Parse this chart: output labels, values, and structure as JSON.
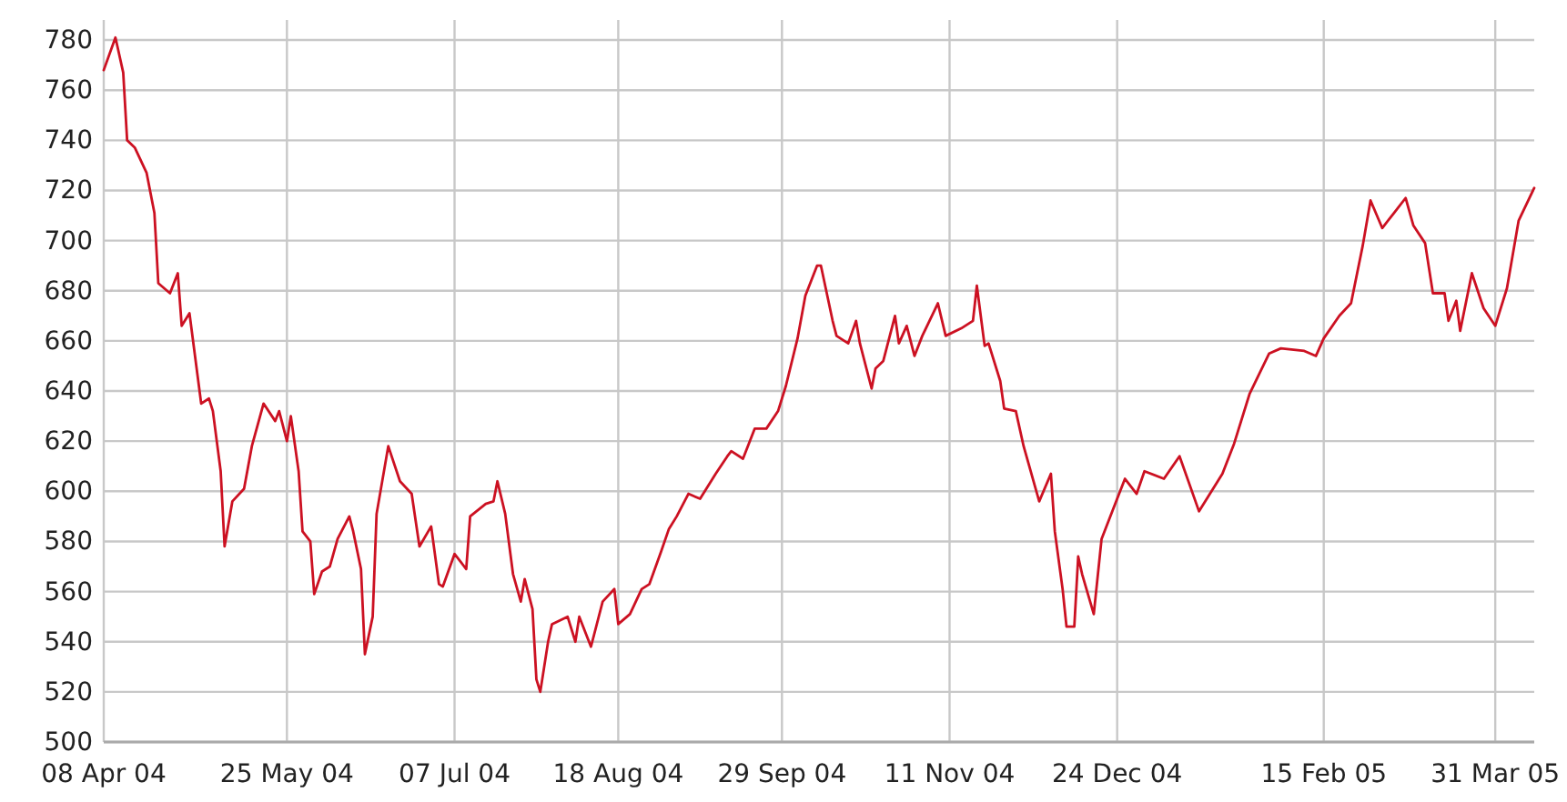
{
  "chart_data": {
    "type": "line",
    "grid": true,
    "xlim": [
      "2004-04-08",
      "2005-04-10"
    ],
    "ylim": [
      500,
      788
    ],
    "xticks": [
      {
        "value": "2004-04-08",
        "label": "08 Apr 04"
      },
      {
        "value": "2004-05-25",
        "label": "25 May 04"
      },
      {
        "value": "2004-07-07",
        "label": "07 Jul 04"
      },
      {
        "value": "2004-08-18",
        "label": "18 Aug 04"
      },
      {
        "value": "2004-09-29",
        "label": "29 Sep 04"
      },
      {
        "value": "2004-11-11",
        "label": "11 Nov 04"
      },
      {
        "value": "2004-12-24",
        "label": "24 Dec 04"
      },
      {
        "value": "2005-02-15",
        "label": "15 Feb 05"
      },
      {
        "value": "2005-03-31",
        "label": "31 Mar 05"
      }
    ],
    "yticks": [
      500,
      520,
      540,
      560,
      580,
      600,
      620,
      640,
      660,
      680,
      700,
      720,
      740,
      760,
      780
    ],
    "x": [
      "2004-04-08",
      "2004-04-11",
      "2004-04-13",
      "2004-04-14",
      "2004-04-16",
      "2004-04-19",
      "2004-04-21",
      "2004-04-22",
      "2004-04-25",
      "2004-04-27",
      "2004-04-28",
      "2004-04-30",
      "2004-05-02",
      "2004-05-03",
      "2004-05-05",
      "2004-05-06",
      "2004-05-08",
      "2004-05-09",
      "2004-05-11",
      "2004-05-14",
      "2004-05-16",
      "2004-05-19",
      "2004-05-22",
      "2004-05-23",
      "2004-05-25",
      "2004-05-26",
      "2004-05-28",
      "2004-05-29",
      "2004-05-31",
      "2004-06-01",
      "2004-06-03",
      "2004-06-05",
      "2004-06-07",
      "2004-06-10",
      "2004-06-11",
      "2004-06-13",
      "2004-06-14",
      "2004-06-16",
      "2004-06-17",
      "2004-06-20",
      "2004-06-23",
      "2004-06-26",
      "2004-06-28",
      "2004-07-01",
      "2004-07-03",
      "2004-07-04",
      "2004-07-07",
      "2004-07-10",
      "2004-07-11",
      "2004-07-15",
      "2004-07-17",
      "2004-07-18",
      "2004-07-20",
      "2004-07-22",
      "2004-07-24",
      "2004-07-25",
      "2004-07-27",
      "2004-07-28",
      "2004-07-29",
      "2004-07-31",
      "2004-08-01",
      "2004-08-05",
      "2004-08-07",
      "2004-08-08",
      "2004-08-11",
      "2004-08-14",
      "2004-08-17",
      "2004-08-18",
      "2004-08-21",
      "2004-08-24",
      "2004-08-26",
      "2004-08-29",
      "2004-08-31",
      "2004-09-02",
      "2004-09-05",
      "2004-09-08",
      "2004-09-12",
      "2004-09-15",
      "2004-09-16",
      "2004-09-19",
      "2004-09-22",
      "2004-09-25",
      "2004-09-28",
      "2004-09-30",
      "2004-10-03",
      "2004-10-05",
      "2004-10-08",
      "2004-10-09",
      "2004-10-12",
      "2004-10-13",
      "2004-10-16",
      "2004-10-18",
      "2004-10-19",
      "2004-10-22",
      "2004-10-23",
      "2004-10-25",
      "2004-10-28",
      "2004-10-29",
      "2004-10-31",
      "2004-11-02",
      "2004-11-04",
      "2004-11-08",
      "2004-11-10",
      "2004-11-14",
      "2004-11-17",
      "2004-11-18",
      "2004-11-20",
      "2004-11-21",
      "2004-11-24",
      "2004-11-25",
      "2004-11-28",
      "2004-11-30",
      "2004-12-04",
      "2004-12-07",
      "2004-12-08",
      "2004-12-10",
      "2004-12-11",
      "2004-12-13",
      "2004-12-14",
      "2004-12-15",
      "2004-12-18",
      "2004-12-20",
      "2004-12-23",
      "2004-12-26",
      "2004-12-29",
      "2004-12-31",
      "2005-01-05",
      "2005-01-09",
      "2005-01-14",
      "2005-01-20",
      "2005-01-23",
      "2005-01-27",
      "2005-02-01",
      "2005-02-04",
      "2005-02-10",
      "2005-02-13",
      "2005-02-15",
      "2005-02-19",
      "2005-02-22",
      "2005-02-25",
      "2005-02-27",
      "2005-03-02",
      "2005-03-05",
      "2005-03-08",
      "2005-03-10",
      "2005-03-13",
      "2005-03-15",
      "2005-03-18",
      "2005-03-19",
      "2005-03-21",
      "2005-03-22",
      "2005-03-25",
      "2005-03-28",
      "2005-03-31",
      "2005-04-03",
      "2005-04-04",
      "2005-04-06",
      "2005-04-10"
    ],
    "series": [
      {
        "color": "#cc1122",
        "values": [
          768,
          781,
          767,
          740,
          737,
          727,
          711,
          683,
          679,
          687,
          666,
          671,
          647,
          635,
          637,
          632,
          608,
          578,
          596,
          601,
          618,
          635,
          628,
          632,
          620,
          630,
          608,
          584,
          580,
          559,
          568,
          570,
          581,
          590,
          584,
          569,
          535,
          550,
          591,
          618,
          604,
          599,
          578,
          586,
          563,
          562,
          575,
          569,
          590,
          595,
          596,
          604,
          591,
          567,
          556,
          565,
          553,
          525,
          520,
          540,
          547,
          550,
          540,
          550,
          538,
          556,
          561,
          547,
          551,
          561,
          563,
          576,
          585,
          590,
          599,
          597,
          607,
          614,
          616,
          613,
          625,
          625,
          632,
          642,
          661,
          678,
          690,
          690,
          668,
          662,
          659,
          668,
          659,
          641,
          649,
          652,
          670,
          659,
          666,
          654,
          662,
          675,
          662,
          665,
          668,
          682,
          658,
          659,
          644,
          633,
          632,
          618,
          596,
          607,
          584,
          561,
          546,
          546,
          574,
          567,
          551,
          581,
          593,
          605,
          599,
          608,
          605,
          614,
          592,
          607,
          619,
          639,
          655,
          657,
          656,
          654,
          661,
          670,
          675,
          698,
          716,
          705,
          711,
          717,
          706,
          699,
          679,
          679,
          668,
          676,
          664,
          687,
          673,
          666,
          681,
          690,
          708,
          721
        ]
      }
    ]
  }
}
